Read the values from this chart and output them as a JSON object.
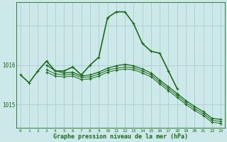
{
  "bg_color": "#cce8e8",
  "grid_color": "#aacfcf",
  "line_color": "#1a6b1a",
  "marker": "+",
  "marker_size": 3,
  "marker_lw": 0.8,
  "x": [
    0,
    1,
    2,
    3,
    4,
    5,
    6,
    7,
    8,
    9,
    10,
    11,
    12,
    13,
    14,
    15,
    16,
    17,
    18,
    19,
    20,
    21,
    22,
    23
  ],
  "series1": [
    1015.75,
    1015.55,
    1015.85,
    1016.1,
    1015.85,
    1015.85,
    1015.95,
    1015.75,
    1016.0,
    1016.2,
    1017.2,
    1017.35,
    1017.35,
    1017.05,
    1016.55,
    1016.35,
    1016.3,
    1015.85,
    1015.4,
    null,
    null,
    null,
    null,
    null
  ],
  "series2": [
    null,
    null,
    null,
    1016.0,
    1015.85,
    1015.8,
    1015.82,
    1015.72,
    1015.75,
    1015.82,
    1015.92,
    1015.98,
    1016.02,
    1015.98,
    1015.9,
    1015.8,
    1015.62,
    1015.45,
    1015.28,
    1015.1,
    1014.95,
    1014.82,
    1014.65,
    1014.62
  ],
  "series3": [
    null,
    null,
    null,
    1015.88,
    1015.78,
    1015.75,
    1015.77,
    1015.68,
    1015.7,
    1015.77,
    1015.87,
    1015.92,
    1015.95,
    1015.93,
    1015.85,
    1015.75,
    1015.57,
    1015.4,
    1015.23,
    1015.05,
    1014.9,
    1014.77,
    1014.6,
    1014.57
  ],
  "series4": [
    null,
    null,
    null,
    1015.82,
    1015.72,
    1015.7,
    1015.72,
    1015.63,
    1015.65,
    1015.72,
    1015.82,
    1015.87,
    1015.9,
    1015.88,
    1015.8,
    1015.7,
    1015.52,
    1015.35,
    1015.18,
    1015.0,
    1014.85,
    1014.72,
    1014.55,
    1014.52
  ],
  "ylim": [
    1014.4,
    1017.6
  ],
  "yticks": [
    1015,
    1016,
    1017
  ],
  "ytick_labels": [
    "1015",
    "1016",
    ""
  ],
  "xlabel": "Graphe pression niveau de la mer (hPa)",
  "lw1": 1.2,
  "lw2": 0.9,
  "lw3": 0.7,
  "lw4": 0.7
}
